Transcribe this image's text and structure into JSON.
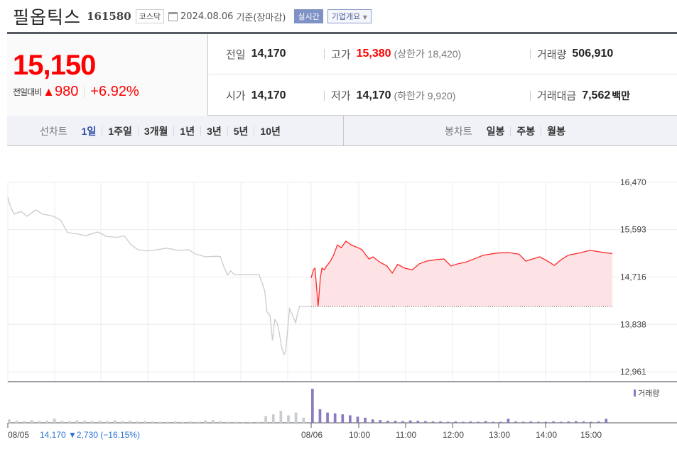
{
  "header": {
    "name": "필옵틱스",
    "code": "161580",
    "market": "코스닥",
    "date": "2024.08.06",
    "date_note": "기준(장마감)",
    "realtime": "실시간",
    "company_info": "기업개요",
    "calendar_icon": "calendar-icon"
  },
  "price": {
    "current": "15,150",
    "change_label": "전일대비",
    "change": "980",
    "change_pct": "+6.92%",
    "direction": "up"
  },
  "stats": {
    "prev_close": {
      "label": "전일",
      "value": "14,170"
    },
    "open": {
      "label": "시가",
      "value": "14,170"
    },
    "high": {
      "label": "고가",
      "value": "15,380",
      "limit_label": "(상한가 18,420)"
    },
    "low": {
      "label": "저가",
      "value": "14,170",
      "limit_label": "(하한가 9,920)"
    },
    "volume": {
      "label": "거래량",
      "value": "506,910"
    },
    "amount": {
      "label": "거래대금",
      "value": "7,562",
      "unit": "백만"
    }
  },
  "tabs": {
    "line_title": "선차트",
    "line": [
      "1일",
      "1주일",
      "3개월",
      "1년",
      "3년",
      "5년",
      "10년"
    ],
    "line_active": "1일",
    "candle_title": "봉차트",
    "candle": [
      "일봉",
      "주봉",
      "월봉"
    ]
  },
  "colors": {
    "up": "#ff0000",
    "down": "#1a6ddb",
    "prev_line": "#c8cbd0",
    "today_line": "#ff2a2a",
    "fill": "#fde3e5",
    "volume_today": "#8c7bc0",
    "volume_prev": "#c8cbd0"
  },
  "chart_data": {
    "type": "line",
    "ylim": [
      12961,
      16470
    ],
    "yticks": [
      "16,470",
      "15,593",
      "14,716",
      "13,838",
      "12,961"
    ],
    "ytick_values": [
      16470,
      15593,
      14716,
      13838,
      12961
    ],
    "baseline": 14170,
    "xticks": [
      "08/05",
      "08/06",
      "10:00",
      "11:00",
      "12:00",
      "13:00",
      "14:00",
      "15:00"
    ],
    "prev_day": {
      "label": "08/05",
      "summary": "14,170 ▼2,730 (−16.15%)",
      "points": [
        [
          "09:00",
          16190
        ],
        [
          "09:03",
          16040
        ],
        [
          "09:08",
          15880
        ],
        [
          "09:17",
          15930
        ],
        [
          "09:25",
          15840
        ],
        [
          "09:36",
          15960
        ],
        [
          "09:45",
          15880
        ],
        [
          "09:59",
          15840
        ],
        [
          "10:08",
          15770
        ],
        [
          "10:17",
          15540
        ],
        [
          "10:31",
          15510
        ],
        [
          "10:40",
          15480
        ],
        [
          "10:56",
          15550
        ],
        [
          "11:07",
          15470
        ],
        [
          "11:21",
          15450
        ],
        [
          "11:30",
          15480
        ],
        [
          "11:39",
          15310
        ],
        [
          "11:48",
          15220
        ],
        [
          "11:58",
          15200
        ],
        [
          "12:07",
          15210
        ],
        [
          "12:25",
          15250
        ],
        [
          "12:39",
          15210
        ],
        [
          "12:53",
          15220
        ],
        [
          "13:02",
          15140
        ],
        [
          "13:15",
          15090
        ],
        [
          "13:29",
          15100
        ],
        [
          "13:34",
          15090
        ],
        [
          "13:38",
          14920
        ],
        [
          "13:43",
          14750
        ],
        [
          "13:47",
          14830
        ],
        [
          "13:52",
          14760
        ],
        [
          "14:24",
          14760
        ],
        [
          "14:31",
          14460
        ],
        [
          "14:34",
          14070
        ],
        [
          "14:38",
          14000
        ],
        [
          "14:41",
          13540
        ],
        [
          "14:44",
          13930
        ],
        [
          "14:47",
          13870
        ],
        [
          "14:50",
          13670
        ],
        [
          "14:53",
          13410
        ],
        [
          "14:56",
          13280
        ],
        [
          "14:58",
          13340
        ],
        [
          "15:01",
          13800
        ],
        [
          "15:03",
          14130
        ],
        [
          "15:05",
          14070
        ],
        [
          "15:08",
          13970
        ],
        [
          "15:11",
          13870
        ],
        [
          "15:13",
          14010
        ],
        [
          "15:16",
          14170
        ],
        [
          "15:30",
          14170
        ]
      ]
    },
    "today": {
      "label": "08/06",
      "points": [
        [
          "09:00",
          14700
        ],
        [
          "09:03",
          14850
        ],
        [
          "09:05",
          14880
        ],
        [
          "09:07",
          14530
        ],
        [
          "09:09",
          14170
        ],
        [
          "09:12",
          14720
        ],
        [
          "09:14",
          14880
        ],
        [
          "09:17",
          14850
        ],
        [
          "09:20",
          14920
        ],
        [
          "09:25",
          15010
        ],
        [
          "09:29",
          15120
        ],
        [
          "09:34",
          15310
        ],
        [
          "09:39",
          15260
        ],
        [
          "09:45",
          15380
        ],
        [
          "09:52",
          15310
        ],
        [
          "10:02",
          15250
        ],
        [
          "10:06",
          15220
        ],
        [
          "10:11",
          15120
        ],
        [
          "10:15",
          15050
        ],
        [
          "10:20",
          15090
        ],
        [
          "10:29",
          14990
        ],
        [
          "10:38",
          14920
        ],
        [
          "10:45",
          14790
        ],
        [
          "10:52",
          14950
        ],
        [
          "11:01",
          14880
        ],
        [
          "11:11",
          14850
        ],
        [
          "11:20",
          14960
        ],
        [
          "11:29",
          15010
        ],
        [
          "11:43",
          15040
        ],
        [
          "11:52",
          15050
        ],
        [
          "12:01",
          14920
        ],
        [
          "12:10",
          14960
        ],
        [
          "12:20",
          14990
        ],
        [
          "12:29",
          15040
        ],
        [
          "12:43",
          15120
        ],
        [
          "13:01",
          15160
        ],
        [
          "13:15",
          15170
        ],
        [
          "13:29",
          15140
        ],
        [
          "13:38",
          15010
        ],
        [
          "13:47",
          15050
        ],
        [
          "13:56",
          15090
        ],
        [
          "14:05",
          15020
        ],
        [
          "14:15",
          14930
        ],
        [
          "14:24",
          15040
        ],
        [
          "14:33",
          15120
        ],
        [
          "14:47",
          15160
        ],
        [
          "15:01",
          15210
        ],
        [
          "15:14",
          15180
        ],
        [
          "15:30",
          15150
        ]
      ]
    },
    "volume_label": "거래량",
    "volume_prev": [
      10,
      6,
      5,
      8,
      5,
      6,
      12,
      6,
      5,
      7,
      6,
      5,
      6,
      5,
      7,
      5,
      6,
      4,
      5,
      4,
      3,
      3,
      4,
      3,
      4,
      3,
      7,
      8,
      5,
      3,
      3,
      2,
      2,
      3,
      20,
      25,
      35,
      22,
      30,
      15
    ],
    "volume_today": [
      100,
      40,
      30,
      28,
      25,
      22,
      18,
      15,
      10,
      8,
      6,
      6,
      5,
      7,
      6,
      5,
      4,
      4,
      3,
      4,
      3,
      4,
      3,
      5,
      3,
      3,
      12,
      4,
      3,
      4,
      3,
      3,
      4,
      3,
      4,
      5,
      4,
      3,
      4,
      12
    ]
  }
}
